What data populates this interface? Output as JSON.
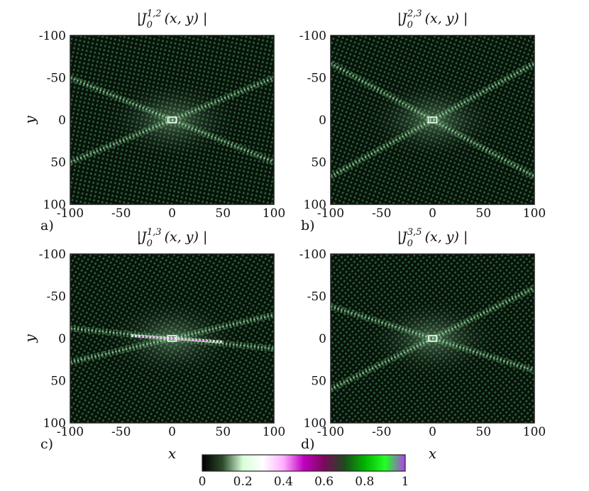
{
  "chart_data": [
    {
      "type": "heatmap",
      "panel_label": "a)",
      "title": "|J_0^{1,2}(x,y)|",
      "title_parts": {
        "left": "|J",
        "sub": "0",
        "sup": "1,2",
        "right": "(x, y) |"
      },
      "xlabel": "",
      "ylabel": "y",
      "xlim": [
        -100,
        100
      ],
      "ylim": [
        -100,
        100
      ],
      "xticks": [
        "-100",
        "-50",
        "0",
        "50",
        "100"
      ],
      "yticks": [
        "-100",
        "-50",
        "0",
        "50",
        "100"
      ],
      "pattern": {
        "ridge_slopes": [
          0.5,
          -0.5
        ],
        "center": [
          0,
          0
        ],
        "peak": 0.35
      }
    },
    {
      "type": "heatmap",
      "panel_label": "b)",
      "title": "|J_0^{2,3}(x,y)|",
      "title_parts": {
        "left": "|J",
        "sub": "0",
        "sup": "2,3",
        "right": "(x, y) |"
      },
      "xlabel": "",
      "ylabel": "",
      "xlim": [
        -100,
        100
      ],
      "ylim": [
        -100,
        100
      ],
      "xticks": [
        "-100",
        "-50",
        "0",
        "50",
        "100"
      ],
      "yticks": [
        "-100",
        "-50",
        "0",
        "50",
        "100"
      ],
      "pattern": {
        "ridge_slopes": [
          0.67,
          -0.67
        ],
        "center": [
          0,
          0
        ],
        "peak": 0.3
      }
    },
    {
      "type": "heatmap",
      "panel_label": "c)",
      "title": "|J_0^{1,3}(x,y)|",
      "title_parts": {
        "left": "|J",
        "sub": "0",
        "sup": "1,3",
        "right": "(x, y) |"
      },
      "xlabel": "x",
      "ylabel": "y",
      "xlim": [
        -100,
        100
      ],
      "ylim": [
        -100,
        100
      ],
      "xticks": [
        "-100",
        "-50",
        "0",
        "50",
        "100"
      ],
      "yticks": [
        "-100",
        "-50",
        "0",
        "50",
        "100"
      ],
      "pattern": {
        "ridge_slopes": [
          0.12,
          -0.28
        ],
        "center": [
          0,
          0
        ],
        "peak": 0.45
      }
    },
    {
      "type": "heatmap",
      "panel_label": "d)",
      "title": "|J_0^{3,5}(x,y)|",
      "title_parts": {
        "left": "|J",
        "sub": "0",
        "sup": "3,5",
        "right": "(x, y) |"
      },
      "xlabel": "x",
      "ylabel": "",
      "xlim": [
        -100,
        100
      ],
      "ylim": [
        -100,
        100
      ],
      "xticks": [
        "-100",
        "-50",
        "0",
        "50",
        "100"
      ],
      "yticks": [
        "-100",
        "-50",
        "0",
        "50",
        "100"
      ],
      "pattern": {
        "ridge_slopes": [
          0.38,
          -0.6
        ],
        "center": [
          0,
          0
        ],
        "peak": 0.3
      }
    }
  ],
  "colorbar": {
    "range": [
      0,
      1
    ],
    "ticks": [
      "0",
      "0.2",
      "0.4",
      "0.6",
      "0.8",
      "1"
    ],
    "colors": [
      "#000000",
      "#2c4a2c",
      "#d8ffd8",
      "#ffffff",
      "#ffb0ff",
      "#c000c0",
      "#7a0a5a",
      "#1e4a1e",
      "#00b400",
      "#22ff22",
      "#b040e8"
    ]
  },
  "colors": {
    "background": "#ffffff",
    "dark_green": "#0a1a0a",
    "pattern_green": "#4fa860",
    "highlight_white": "#ffffff",
    "highlight_magenta": "#e000e0"
  }
}
